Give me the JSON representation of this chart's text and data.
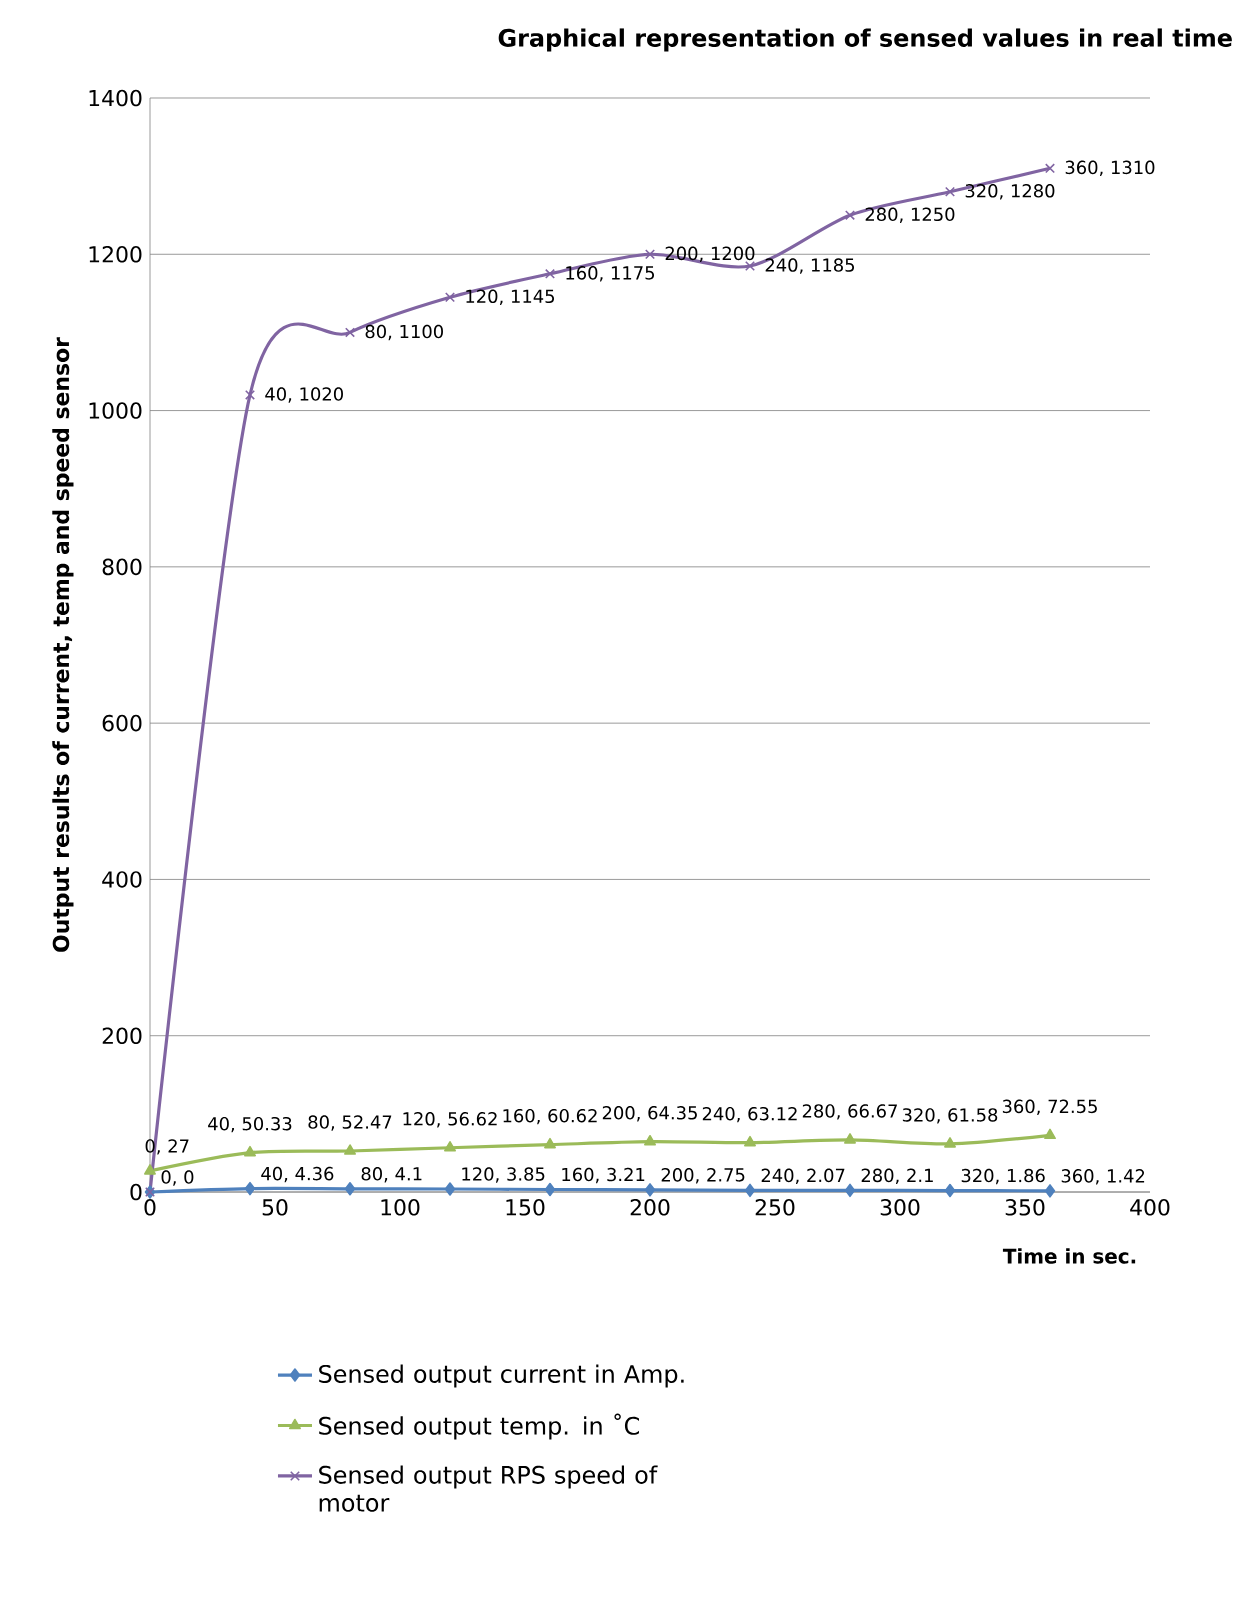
{
  "chart_data": {
    "type": "line",
    "title": "Graphical representation of sensed values in real time",
    "xlabel": "Time in sec.",
    "ylabel": "Output results of current, temp and speed sensor",
    "x": [
      0,
      40,
      80,
      120,
      160,
      200,
      240,
      280,
      320,
      360
    ],
    "series": [
      {
        "name": "Sensed output current in Amp.",
        "color": "#4f81bd",
        "marker": "diamond",
        "values": [
          0,
          4.36,
          4.1,
          3.85,
          3.21,
          2.75,
          2.07,
          2.1,
          1.86,
          1.42
        ],
        "value_labels": [
          "0, 0",
          "40, 4.36",
          "80, 4.1",
          "120, 3.85",
          "160, 3.21",
          "200, 2.75",
          "240, 2.07",
          "280, 2.1",
          "320, 1.86",
          "360, 1.42"
        ]
      },
      {
        "name": "Sensed output temp. in ˚C",
        "color": "#9bbb59",
        "marker": "triangle",
        "values": [
          27,
          50.33,
          52.47,
          56.62,
          60.62,
          64.35,
          63.12,
          66.67,
          61.58,
          72.55
        ],
        "value_labels": [
          "0, 27",
          "40, 50.33",
          "80, 52.47",
          "120, 56.62",
          "160, 60.62",
          "200, 64.35",
          "240, 63.12",
          "280, 66.67",
          "320, 61.58",
          "360, 72.55"
        ]
      },
      {
        "name": "Sensed output RPS speed of motor",
        "color": "#8064a2",
        "marker": "cross",
        "values": [
          0,
          1020,
          1100,
          1145,
          1175,
          1200,
          1185,
          1250,
          1280,
          1310
        ],
        "value_labels": [
          null,
          "40, 1020",
          "80, 1100",
          "120, 1145",
          "160, 1175",
          "200, 1200",
          "240, 1185",
          "280, 1250",
          "320, 1280",
          "360, 1310"
        ]
      }
    ],
    "xlim": [
      0,
      400
    ],
    "xticks": [
      0,
      50,
      100,
      150,
      200,
      250,
      300,
      350,
      400
    ],
    "ylim": [
      0,
      1400
    ],
    "yticks": [
      0,
      200,
      400,
      600,
      800,
      1000,
      1200,
      1400
    ],
    "grid": "y",
    "legend": "bottom"
  }
}
